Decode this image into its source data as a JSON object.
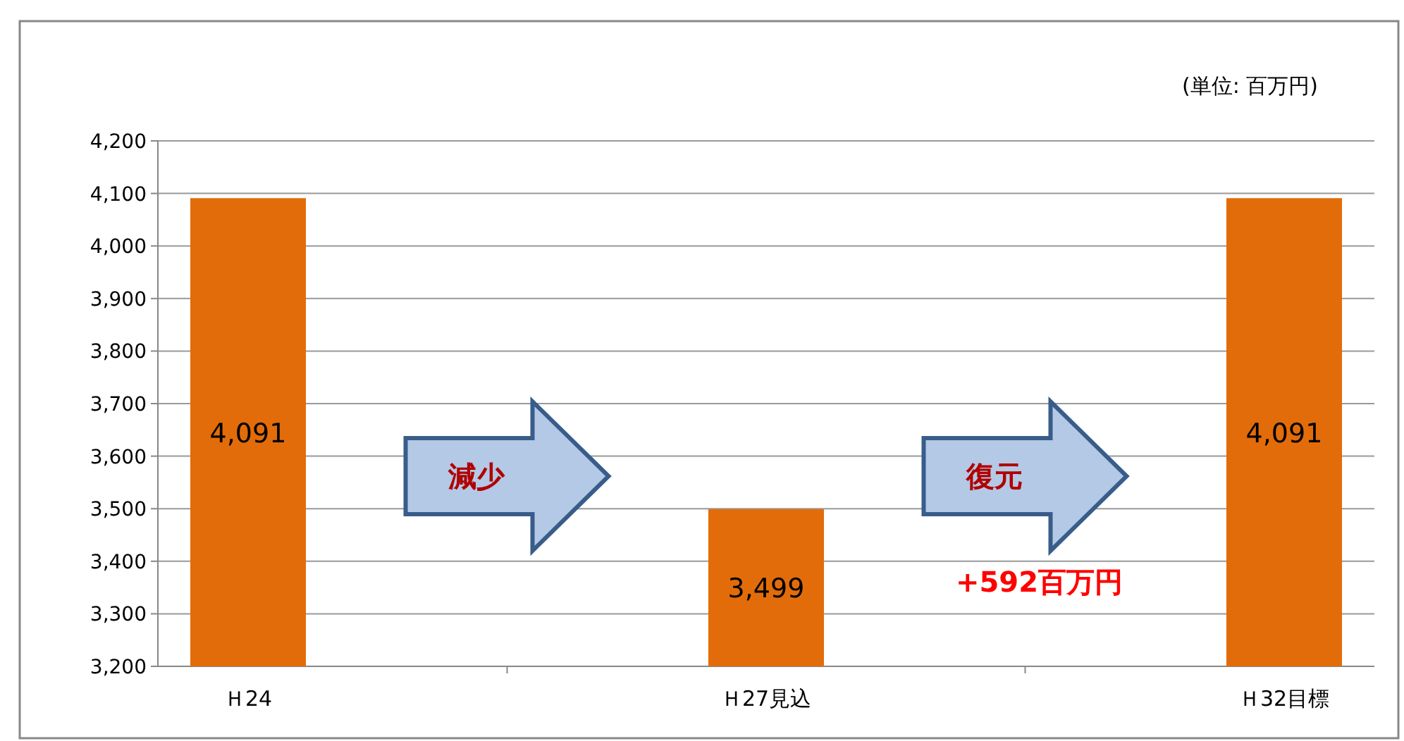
{
  "chart_data": {
    "type": "bar",
    "categories": [
      "Ｈ24",
      "Ｈ27見込",
      "Ｈ32目標"
    ],
    "values": [
      4091,
      3499,
      4091
    ],
    "value_labels": [
      "4,091",
      "3,499",
      "4,091"
    ],
    "color": "#e36c0a",
    "ylim": [
      3200,
      4200
    ],
    "yticks": [
      {
        "value": 3200,
        "label": "3,200"
      },
      {
        "value": 3300,
        "label": "3,300"
      },
      {
        "value": 3400,
        "label": "3,400"
      },
      {
        "value": 3500,
        "label": "3,500"
      },
      {
        "value": 3600,
        "label": "3,600"
      },
      {
        "value": 3700,
        "label": "3,700"
      },
      {
        "value": 3800,
        "label": "3,800"
      },
      {
        "value": 3900,
        "label": "3,900"
      },
      {
        "value": 4000,
        "label": "4,000"
      },
      {
        "value": 4100,
        "label": "4,100"
      },
      {
        "value": 4200,
        "label": "4,200"
      }
    ],
    "grid": "y",
    "annotations": [
      "(単位: 百万円)",
      "減少",
      "復元",
      "+592百万円"
    ]
  }
}
